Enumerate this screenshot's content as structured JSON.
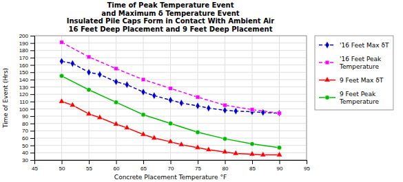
{
  "chart_data": {
    "type": "line",
    "title": "Time of Peak Temperature Event\nand Maximum δ Temperature Event\nInsulated Pile Caps Form in Contact With Ambient Air\n16 Feet Deep Placement and 9 Feet Deep Placement",
    "x_label": "Concrete Placement Temperature °F",
    "y_label": "Time of Event (Hrs)",
    "xlim": [
      45,
      95
    ],
    "ylim": [
      30,
      200
    ],
    "xticks": [
      45,
      50,
      55,
      60,
      65,
      70,
      75,
      80,
      85,
      90,
      95
    ],
    "yticks": [
      30,
      40,
      50,
      60,
      70,
      80,
      90,
      100,
      110,
      120,
      130,
      140,
      150,
      160,
      170,
      180,
      190,
      200
    ],
    "grid": true,
    "legend": "right",
    "series": [
      {
        "name": "'16 Feet Max δT",
        "color": "#0000CC",
        "marker": "diamond",
        "line_style": "dashed",
        "x": [
          50,
          52,
          55,
          57,
          60,
          62,
          65,
          67,
          70,
          72,
          75,
          77,
          80,
          82,
          85,
          87,
          90
        ],
        "values": [
          165,
          162,
          150,
          147,
          137,
          133,
          123,
          118,
          112,
          108,
          104,
          101,
          98,
          97,
          96,
          95,
          94
        ]
      },
      {
        "name": "'16 Feet Peak\nTemperature",
        "color": "#FF00FF",
        "marker": "square",
        "line_style": "dashed",
        "x": [
          50,
          55,
          60,
          65,
          70,
          75,
          80,
          85,
          90
        ],
        "values": [
          191,
          171,
          155,
          140,
          128,
          116,
          105,
          99,
          94
        ]
      },
      {
        "name": "9 Feet Max δT",
        "color": "#FF0000",
        "marker": "triangle",
        "line_style": "solid",
        "x": [
          50,
          52,
          55,
          57,
          60,
          62,
          65,
          67,
          70,
          72,
          75,
          77,
          80,
          82,
          85,
          87,
          90
        ],
        "values": [
          110,
          105,
          93,
          88,
          79,
          74,
          65,
          60,
          55,
          51,
          47,
          44,
          41,
          39,
          38,
          37,
          37
        ]
      },
      {
        "name": "9 Feet Peak\nTemperature",
        "color": "#00BB00",
        "marker": "circle",
        "line_style": "solid",
        "x": [
          50,
          55,
          60,
          65,
          70,
          75,
          80,
          85,
          90
        ],
        "values": [
          145,
          126,
          109,
          92,
          80,
          68,
          59,
          52,
          47
        ]
      }
    ]
  }
}
